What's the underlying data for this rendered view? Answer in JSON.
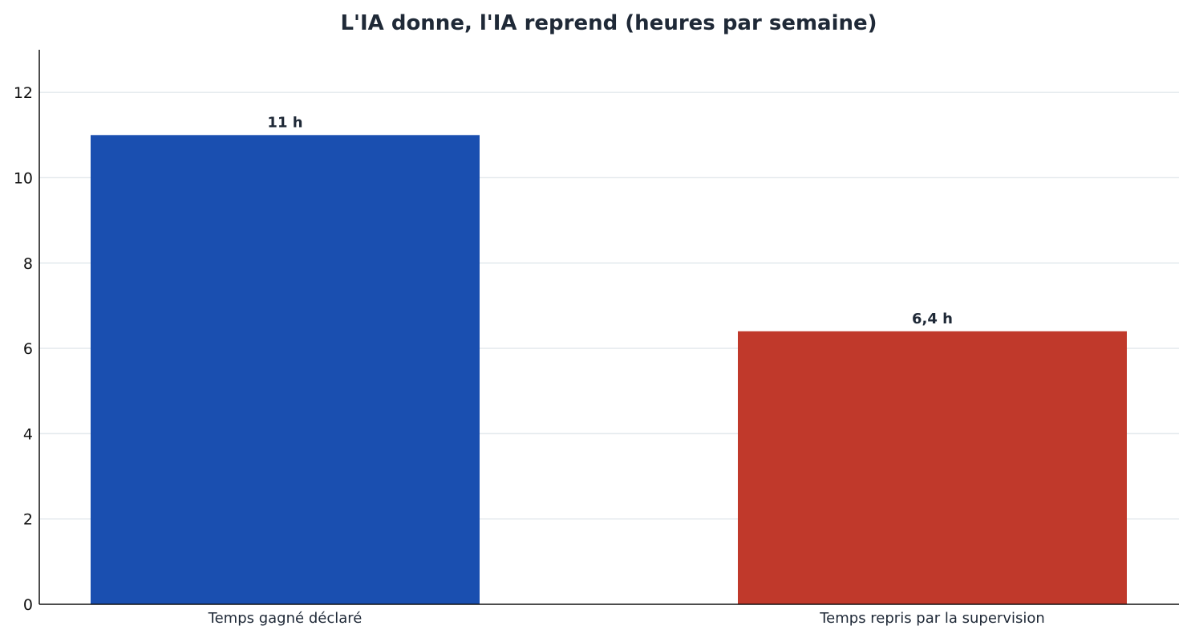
{
  "chart_data": {
    "type": "bar",
    "title": "L'IA donne, l'IA reprend (heures par semaine)",
    "xlabel": "",
    "ylabel": "",
    "categories": [
      "Temps gagné déclaré",
      "Temps repris par la supervision"
    ],
    "values": [
      11,
      6.4
    ],
    "data_labels": [
      "11 h",
      "6,4 h"
    ],
    "colors": [
      "#1a4fb0",
      "#c0392b"
    ],
    "ylim": [
      0,
      13
    ],
    "yticks": [
      0,
      2,
      4,
      6,
      8,
      10,
      12
    ],
    "ytick_labels": [
      "0",
      "2",
      "4",
      "6",
      "8",
      "10",
      "12"
    ],
    "grid": true,
    "grid_axis": "y",
    "legend": "none"
  }
}
